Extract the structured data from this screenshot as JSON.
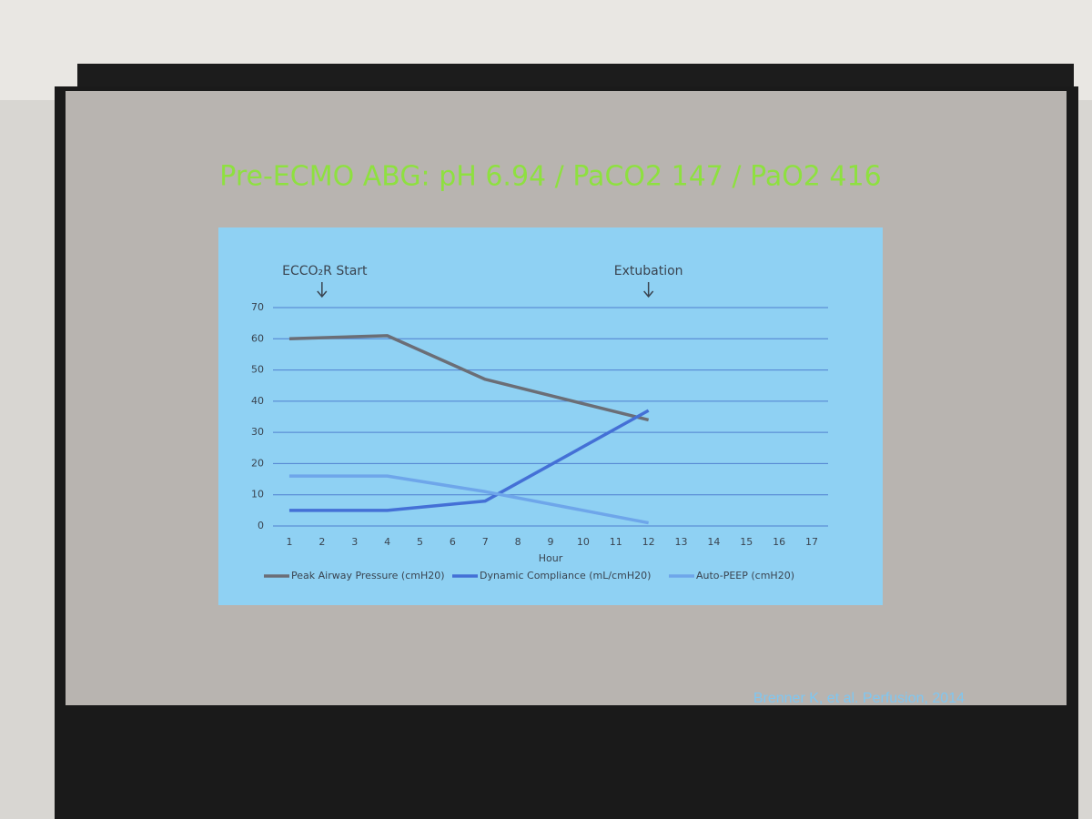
{
  "chart_data": {
    "type": "line",
    "title": "Pre-ECMO ABG: pH 6.94 / PaCO2 147 / PaO2 416",
    "x_label": "Hour",
    "x": [
      1,
      4,
      7,
      12
    ],
    "xlim": [
      0.5,
      17.5
    ],
    "xticks": [
      1,
      2,
      3,
      4,
      5,
      6,
      7,
      8,
      9,
      10,
      11,
      12,
      13,
      14,
      15,
      16,
      17
    ],
    "ylim": [
      0,
      70
    ],
    "yticks": [
      0,
      10,
      20,
      30,
      40,
      50,
      60,
      70
    ],
    "grid": true,
    "legend": "bottom",
    "series": [
      {
        "name": "Peak Airway Pressure (cmH20)",
        "color": "#6b6e76",
        "values": [
          60,
          61,
          47,
          34
        ]
      },
      {
        "name": "Dynamic Compliance (mL/cmH20)",
        "color": "#4470d6",
        "values": [
          5,
          5,
          8,
          37
        ]
      },
      {
        "name": "Auto-PEEP (cmH20)",
        "color": "#6ea6ea",
        "values": [
          16,
          16,
          11,
          1
        ]
      }
    ],
    "annotations": [
      {
        "text": "ECCO₂R Start",
        "x": 2
      },
      {
        "text": "Extubation",
        "x": 12
      }
    ],
    "source": "Brenner K, et al. Perfusion, 2014"
  }
}
